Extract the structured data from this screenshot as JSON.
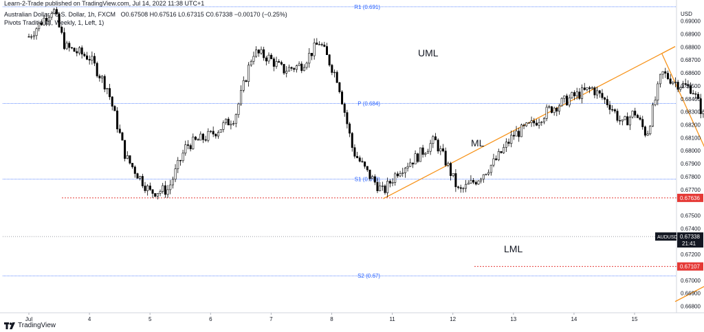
{
  "header": {
    "publisher": "Learn-2-Trade published on TradingView.com, Jul 14, 2022 11:38 UTC+1",
    "symbol": "Australian Dollar / U.S. Dollar, 1h, FXCM",
    "ohlc": "O0.67508 H0.67516 L0.67315 C0.67338 −0.00170 (−0.25%)",
    "indicator": "Pivots Traditional, Weekly, 1, Left, 1)"
  },
  "footer": {
    "brand": "TradingView"
  },
  "colors": {
    "up": "#ffffff",
    "down": "#000000",
    "candle_outline": "#000000",
    "pitchfork": "#f7931a",
    "pivot_lines": "#2962ff",
    "support_dotted": "#e53935",
    "price_line": "#787b86",
    "current_label": "#131722",
    "level_label": "#e53935"
  },
  "chart_data": {
    "type": "candlestick",
    "symbol": "AUDUSD",
    "currency": "USD",
    "ylim": [
      0.6675,
      0.6912
    ],
    "y_ticks": [
      "0.69000",
      "0.68900",
      "0.68800",
      "0.68700",
      "0.68600",
      "0.68500",
      "0.68400",
      "0.68300",
      "0.68200",
      "0.68100",
      "0.68000",
      "0.67900",
      "0.67800",
      "0.67700",
      "0.67500",
      "0.67400",
      "0.67200",
      "0.67000",
      "0.66900",
      "0.66800"
    ],
    "x_ticks": [
      "Jul",
      "4",
      "5",
      "6",
      "7",
      "8",
      "11",
      "12",
      "13",
      "14",
      "15"
    ],
    "pivots": [
      {
        "label": "R1 (0.691)",
        "value": 0.6911
      },
      {
        "label": "P (0.684)",
        "value": 0.68365
      },
      {
        "label": "S1 (0.678)",
        "value": 0.6778
      },
      {
        "label": "S2 (0.67)",
        "value": 0.67035
      }
    ],
    "levels": [
      {
        "label": "0.67636",
        "value": 0.67636,
        "style": "red-dotted"
      },
      {
        "label": "0.67107",
        "value": 0.67107,
        "style": "red-dotted"
      }
    ],
    "current": {
      "symbol": "AUDUSD",
      "price": "0.67338",
      "countdown": "21:41",
      "value": 0.67338
    },
    "pitchfork_labels": [
      "UML",
      "ML",
      "LML"
    ],
    "path": [
      [
        0.0,
        0.6888
      ],
      [
        0.4,
        0.691
      ],
      [
        0.6,
        0.688
      ],
      [
        1.0,
        0.6872
      ],
      [
        1.3,
        0.6848
      ],
      [
        1.6,
        0.6795
      ],
      [
        2.0,
        0.6768
      ],
      [
        2.3,
        0.677
      ],
      [
        2.6,
        0.6804
      ],
      [
        3.0,
        0.6812
      ],
      [
        3.4,
        0.6826
      ],
      [
        3.7,
        0.6876
      ],
      [
        3.95,
        0.6872
      ],
      [
        4.2,
        0.6862
      ],
      [
        4.5,
        0.6866
      ],
      [
        4.8,
        0.6884
      ],
      [
        5.1,
        0.6855
      ],
      [
        5.35,
        0.68
      ],
      [
        5.6,
        0.6782
      ],
      [
        5.85,
        0.6768
      ],
      [
        6.1,
        0.6785
      ],
      [
        6.4,
        0.6795
      ],
      [
        6.7,
        0.6808
      ],
      [
        6.9,
        0.679
      ],
      [
        7.1,
        0.6768
      ],
      [
        7.4,
        0.6778
      ],
      [
        7.7,
        0.6792
      ],
      [
        8.0,
        0.6812
      ],
      [
        8.3,
        0.682
      ],
      [
        8.6,
        0.6832
      ],
      [
        9.0,
        0.6842
      ],
      [
        9.3,
        0.6848
      ],
      [
        9.6,
        0.6835
      ],
      [
        9.8,
        0.682
      ],
      [
        10.0,
        0.683
      ],
      [
        10.2,
        0.6812
      ],
      [
        10.45,
        0.686
      ],
      [
        10.7,
        0.6852
      ],
      [
        10.95,
        0.6848
      ],
      [
        11.2,
        0.682
      ],
      [
        11.4,
        0.68
      ],
      [
        11.65,
        0.6776
      ],
      [
        11.9,
        0.674
      ],
      [
        12.1,
        0.6728
      ],
      [
        12.35,
        0.6735
      ],
      [
        12.6,
        0.6725
      ],
      [
        12.85,
        0.6722
      ],
      [
        13.05,
        0.6735
      ],
      [
        13.3,
        0.676
      ],
      [
        13.55,
        0.6768
      ],
      [
        13.8,
        0.676
      ],
      [
        14.0,
        0.675
      ],
      [
        14.3,
        0.6755
      ],
      [
        14.55,
        0.677
      ],
      [
        14.8,
        0.679
      ],
      [
        15.0,
        0.6775
      ],
      [
        15.2,
        0.6798
      ],
      [
        15.5,
        0.6768
      ],
      [
        15.75,
        0.6755
      ],
      [
        16.0,
        0.674
      ],
      [
        16.25,
        0.6765
      ],
      [
        16.45,
        0.6782
      ],
      [
        16.7,
        0.6765
      ],
      [
        16.9,
        0.675
      ],
      [
        17.1,
        0.6734
      ]
    ],
    "pitchfork": {
      "pivot_a": [
        10.45,
        0.6875
      ],
      "pivot_b": [
        5.85,
        0.6763
      ],
      "pivot_c": [
        12.0,
        0.6716
      ]
    }
  }
}
